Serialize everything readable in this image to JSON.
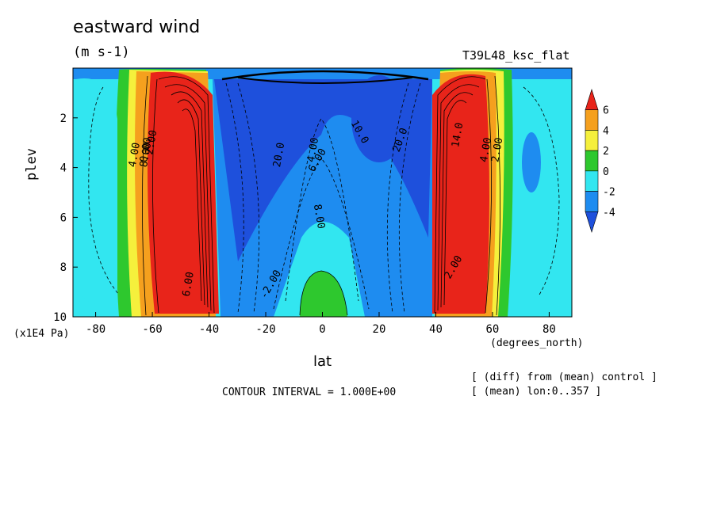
{
  "title": "eastward wind",
  "units": "(m s-1)",
  "run_label": "T39L48_ksc_flat",
  "contour_interval": "CONTOUR INTERVAL = 1.000E+00",
  "notes": [
    "[ (diff) from (mean) control ]",
    "[ (mean) lon:0..357 ]"
  ],
  "chart_data": {
    "type": "heatmap",
    "xlabel": "lat",
    "xunits": "(degrees_north)",
    "ylabel": "plev",
    "yunits": "(x1E4 Pa)",
    "xlim": [
      -88,
      88
    ],
    "ylim": [
      0,
      10
    ],
    "y_inverted": true,
    "xticks": [
      "-80",
      "-60",
      "-40",
      "-20",
      "0",
      "20",
      "40",
      "60",
      "80"
    ],
    "yticks": [
      "2",
      "4",
      "6",
      "8",
      "10"
    ],
    "colorbar": {
      "labels": [
        "6",
        "4",
        "2",
        "0",
        "-2",
        "-4"
      ],
      "colors": [
        "#e8241a",
        "#f5a01e",
        "#f5f03c",
        "#2ec82e",
        "#32e6f0",
        "#1e8cf0",
        "#1e50dc"
      ]
    },
    "contour_labels": [
      "20.0",
      "20.0",
      "10.0",
      "8.00",
      "6.00",
      "4.00",
      "2.00",
      "0.00",
      "-2.00",
      "8.00",
      "6.00",
      "4.00",
      "2.00",
      "14.0",
      "4.00",
      "2.00"
    ],
    "features": [
      {
        "name": "southern westerly jet",
        "lat_center": -45,
        "plev_peak": 2.5,
        "sign": "positive"
      },
      {
        "name": "northern westerly jet",
        "lat_center": 47,
        "plev_peak": 2.5,
        "sign": "positive"
      },
      {
        "name": "equatorial easterly band",
        "lat_center": 0,
        "plev_range": [
          0,
          8
        ],
        "sign": "negative"
      },
      {
        "name": "equatorial surface westerlies",
        "lat_center": 2,
        "plev_range": [
          8,
          10
        ],
        "sign": "positive"
      }
    ]
  }
}
